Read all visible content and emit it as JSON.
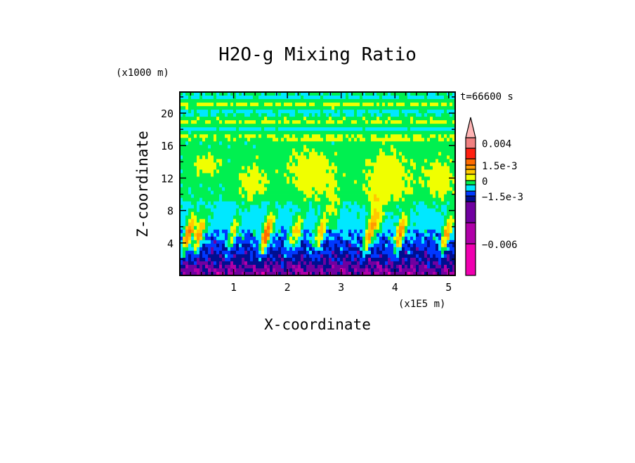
{
  "chart_data": {
    "type": "heatmap",
    "title": "H2O-g Mixing Ratio",
    "xlabel": "X-coordinate",
    "ylabel": "Z-coordinate",
    "x_unit_label": "(x1E5 m)",
    "y_unit_label": "(x1000 m)",
    "time_annotation": "t=66600 s",
    "xlim": [
      0,
      5.12
    ],
    "ylim": [
      0,
      22.6
    ],
    "x_ticks": [
      {
        "value": 1,
        "label": "1"
      },
      {
        "value": 2,
        "label": "2"
      },
      {
        "value": 3,
        "label": "3"
      },
      {
        "value": 4,
        "label": "4"
      },
      {
        "value": 5,
        "label": "5"
      }
    ],
    "y_ticks": [
      {
        "value": 4,
        "label": "4"
      },
      {
        "value": 8,
        "label": "8"
      },
      {
        "value": 12,
        "label": "12"
      },
      {
        "value": 16,
        "label": "16"
      },
      {
        "value": 20,
        "label": "20"
      }
    ],
    "colorbar": {
      "colors_low_to_high": [
        "#f000b0",
        "#b000a8",
        "#7000a0",
        "#000e90",
        "#0038ff",
        "#00e8ff",
        "#00f050",
        "#f0ff00",
        "#ffc800",
        "#ff9a00",
        "#ff6a00",
        "#ff2010",
        "#f08080",
        "#ffb4b4"
      ],
      "labels": [
        {
          "level_index": 12.5,
          "label": "0.004"
        },
        {
          "level_index": 10,
          "label": "1.5e-3"
        },
        {
          "level_index": 7,
          "label": "0"
        },
        {
          "level_index": 4,
          "label": "−1.5e-3"
        },
        {
          "level_index": 1,
          "label": "−0.006"
        }
      ],
      "extend": "max"
    },
    "pattern_description_levels": {
      "surface_layer_0_to_5km": "purple/navy/blue with orange-red plumes",
      "mid_layer_5_to_9km": "cyan",
      "upper_9_to_16km": "green with large yellow anomalies near x=2.5 and x=3.9",
      "top_16_to_22km": "alternating green and yellow bands"
    }
  }
}
